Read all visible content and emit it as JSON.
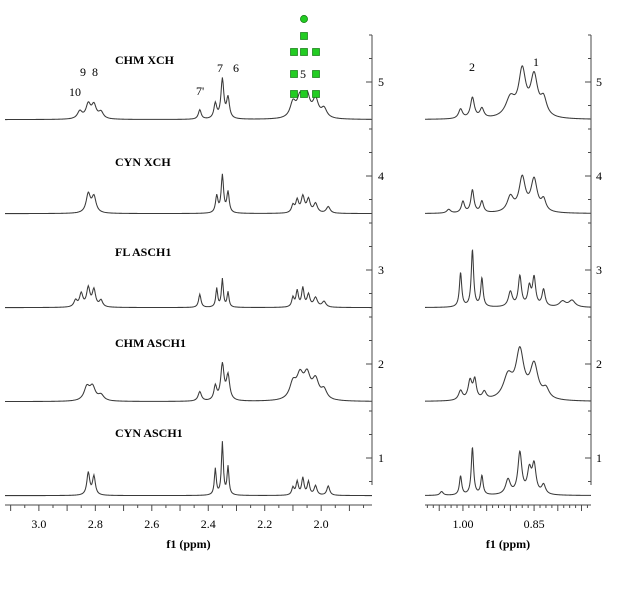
{
  "chart_data": [
    {
      "type": "line",
      "xlabel": "f1 (ppm)",
      "xlim": [
        3.12,
        1.82
      ],
      "x_ticks": [
        "3.0",
        "2.8",
        "2.6",
        "2.4",
        "2.2",
        "2.0"
      ],
      "x_tick_values": [
        3.0,
        2.8,
        2.6,
        2.4,
        2.2,
        2.0
      ],
      "y_ticks": [
        "1",
        "2",
        "3",
        "4",
        "5"
      ],
      "y_tick_values": [
        1,
        2,
        3,
        4,
        5
      ],
      "ylim": [
        0.5,
        5.5
      ],
      "grid": false,
      "spectra": [
        {
          "name": "CHM XCH",
          "baseline": 4.6,
          "peaks": [
            {
              "x": 2.855,
              "h": 0.08,
              "w": 0.01
            },
            {
              "x": 2.825,
              "h": 0.15,
              "w": 0.01
            },
            {
              "x": 2.805,
              "h": 0.14,
              "w": 0.01
            },
            {
              "x": 2.78,
              "h": 0.07,
              "w": 0.01
            },
            {
              "x": 2.43,
              "h": 0.1,
              "w": 0.006
            },
            {
              "x": 2.375,
              "h": 0.16,
              "w": 0.006
            },
            {
              "x": 2.35,
              "h": 0.42,
              "w": 0.006
            },
            {
              "x": 2.33,
              "h": 0.22,
              "w": 0.006
            },
            {
              "x": 2.1,
              "h": 0.16,
              "w": 0.012
            },
            {
              "x": 2.075,
              "h": 0.21,
              "w": 0.012
            },
            {
              "x": 2.05,
              "h": 0.23,
              "w": 0.012
            },
            {
              "x": 2.02,
              "h": 0.19,
              "w": 0.012
            },
            {
              "x": 1.99,
              "h": 0.1,
              "w": 0.012
            }
          ]
        },
        {
          "name": "CYN XCH",
          "baseline": 3.6,
          "peaks": [
            {
              "x": 2.825,
              "h": 0.2,
              "w": 0.009
            },
            {
              "x": 2.805,
              "h": 0.17,
              "w": 0.009
            },
            {
              "x": 2.37,
              "h": 0.18,
              "w": 0.005
            },
            {
              "x": 2.35,
              "h": 0.4,
              "w": 0.005
            },
            {
              "x": 2.33,
              "h": 0.22,
              "w": 0.005
            },
            {
              "x": 2.1,
              "h": 0.08,
              "w": 0.006
            },
            {
              "x": 2.085,
              "h": 0.13,
              "w": 0.006
            },
            {
              "x": 2.065,
              "h": 0.17,
              "w": 0.007
            },
            {
              "x": 2.045,
              "h": 0.14,
              "w": 0.007
            },
            {
              "x": 2.02,
              "h": 0.1,
              "w": 0.008
            },
            {
              "x": 1.975,
              "h": 0.07,
              "w": 0.008
            }
          ]
        },
        {
          "name": "FL ASCH1",
          "baseline": 2.6,
          "peaks": [
            {
              "x": 2.87,
              "h": 0.07,
              "w": 0.007
            },
            {
              "x": 2.85,
              "h": 0.14,
              "w": 0.007
            },
            {
              "x": 2.825,
              "h": 0.2,
              "w": 0.007
            },
            {
              "x": 2.805,
              "h": 0.18,
              "w": 0.007
            },
            {
              "x": 2.78,
              "h": 0.07,
              "w": 0.007
            },
            {
              "x": 2.43,
              "h": 0.14,
              "w": 0.005
            },
            {
              "x": 2.37,
              "h": 0.2,
              "w": 0.004
            },
            {
              "x": 2.35,
              "h": 0.3,
              "w": 0.004
            },
            {
              "x": 2.33,
              "h": 0.16,
              "w": 0.004
            },
            {
              "x": 2.1,
              "h": 0.1,
              "w": 0.005
            },
            {
              "x": 2.085,
              "h": 0.17,
              "w": 0.005
            },
            {
              "x": 2.065,
              "h": 0.2,
              "w": 0.005
            },
            {
              "x": 2.045,
              "h": 0.13,
              "w": 0.006
            },
            {
              "x": 2.02,
              "h": 0.1,
              "w": 0.008
            },
            {
              "x": 1.99,
              "h": 0.06,
              "w": 0.008
            }
          ]
        },
        {
          "name": "CHM ASCH1",
          "baseline": 1.6,
          "peaks": [
            {
              "x": 2.83,
              "h": 0.14,
              "w": 0.012
            },
            {
              "x": 2.81,
              "h": 0.14,
              "w": 0.012
            },
            {
              "x": 2.78,
              "h": 0.06,
              "w": 0.012
            },
            {
              "x": 2.43,
              "h": 0.1,
              "w": 0.007
            },
            {
              "x": 2.375,
              "h": 0.15,
              "w": 0.006
            },
            {
              "x": 2.35,
              "h": 0.38,
              "w": 0.007
            },
            {
              "x": 2.33,
              "h": 0.26,
              "w": 0.007
            },
            {
              "x": 2.1,
              "h": 0.17,
              "w": 0.014
            },
            {
              "x": 2.075,
              "h": 0.23,
              "w": 0.014
            },
            {
              "x": 2.05,
              "h": 0.24,
              "w": 0.014
            },
            {
              "x": 2.02,
              "h": 0.2,
              "w": 0.014
            },
            {
              "x": 1.99,
              "h": 0.1,
              "w": 0.012
            }
          ]
        },
        {
          "name": "CYN ASCH1",
          "baseline": 0.6,
          "peaks": [
            {
              "x": 2.825,
              "h": 0.24,
              "w": 0.006
            },
            {
              "x": 2.805,
              "h": 0.2,
              "w": 0.006
            },
            {
              "x": 2.375,
              "h": 0.28,
              "w": 0.004
            },
            {
              "x": 2.35,
              "h": 0.56,
              "w": 0.004
            },
            {
              "x": 2.33,
              "h": 0.3,
              "w": 0.004
            },
            {
              "x": 2.1,
              "h": 0.08,
              "w": 0.005
            },
            {
              "x": 2.085,
              "h": 0.14,
              "w": 0.005
            },
            {
              "x": 2.065,
              "h": 0.18,
              "w": 0.005
            },
            {
              "x": 2.045,
              "h": 0.14,
              "w": 0.005
            },
            {
              "x": 2.02,
              "h": 0.1,
              "w": 0.006
            },
            {
              "x": 1.975,
              "h": 0.1,
              "w": 0.006
            }
          ]
        }
      ]
    },
    {
      "type": "line",
      "xlabel": "f1 (ppm)",
      "xlim": [
        1.08,
        0.73
      ],
      "x_ticks": [
        "1.00",
        "0.85"
      ],
      "x_tick_values": [
        1.0,
        0.85
      ],
      "y_ticks": [
        "1",
        "2",
        "3",
        "4",
        "5"
      ],
      "y_tick_values": [
        1,
        2,
        3,
        4,
        5
      ],
      "ylim": [
        0.5,
        5.5
      ],
      "grid": false,
      "spectra": [
        {
          "name": "CHM XCH",
          "baseline": 4.6,
          "peaks": [
            {
              "x": 1.005,
              "h": 0.1,
              "w": 0.005
            },
            {
              "x": 0.98,
              "h": 0.22,
              "w": 0.005
            },
            {
              "x": 0.96,
              "h": 0.1,
              "w": 0.005
            },
            {
              "x": 0.9,
              "h": 0.2,
              "w": 0.012
            },
            {
              "x": 0.875,
              "h": 0.48,
              "w": 0.009
            },
            {
              "x": 0.85,
              "h": 0.42,
              "w": 0.009
            },
            {
              "x": 0.83,
              "h": 0.18,
              "w": 0.008
            }
          ]
        },
        {
          "name": "CYN XCH",
          "baseline": 3.6,
          "peaks": [
            {
              "x": 1.03,
              "h": 0.04,
              "w": 0.005
            },
            {
              "x": 1.0,
              "h": 0.12,
              "w": 0.004
            },
            {
              "x": 0.98,
              "h": 0.24,
              "w": 0.004
            },
            {
              "x": 0.96,
              "h": 0.12,
              "w": 0.004
            },
            {
              "x": 0.9,
              "h": 0.16,
              "w": 0.008
            },
            {
              "x": 0.875,
              "h": 0.36,
              "w": 0.008
            },
            {
              "x": 0.85,
              "h": 0.34,
              "w": 0.008
            },
            {
              "x": 0.83,
              "h": 0.12,
              "w": 0.006
            }
          ]
        },
        {
          "name": "FL ASCH1",
          "baseline": 2.6,
          "peaks": [
            {
              "x": 1.005,
              "h": 0.36,
              "w": 0.003
            },
            {
              "x": 0.98,
              "h": 0.6,
              "w": 0.003
            },
            {
              "x": 0.96,
              "h": 0.3,
              "w": 0.003
            },
            {
              "x": 0.9,
              "h": 0.16,
              "w": 0.005
            },
            {
              "x": 0.88,
              "h": 0.32,
              "w": 0.004
            },
            {
              "x": 0.86,
              "h": 0.2,
              "w": 0.004
            },
            {
              "x": 0.85,
              "h": 0.3,
              "w": 0.004
            },
            {
              "x": 0.83,
              "h": 0.18,
              "w": 0.004
            },
            {
              "x": 0.79,
              "h": 0.06,
              "w": 0.008
            },
            {
              "x": 0.77,
              "h": 0.07,
              "w": 0.008
            }
          ]
        },
        {
          "name": "CHM ASCH1",
          "baseline": 1.6,
          "peaks": [
            {
              "x": 1.005,
              "h": 0.1,
              "w": 0.005
            },
            {
              "x": 0.985,
              "h": 0.2,
              "w": 0.005
            },
            {
              "x": 0.975,
              "h": 0.2,
              "w": 0.004
            },
            {
              "x": 0.955,
              "h": 0.08,
              "w": 0.005
            },
            {
              "x": 0.905,
              "h": 0.24,
              "w": 0.012
            },
            {
              "x": 0.88,
              "h": 0.5,
              "w": 0.01
            },
            {
              "x": 0.85,
              "h": 0.36,
              "w": 0.01
            },
            {
              "x": 0.825,
              "h": 0.1,
              "w": 0.008
            }
          ]
        },
        {
          "name": "CYN ASCH1",
          "baseline": 0.6,
          "peaks": [
            {
              "x": 1.045,
              "h": 0.04,
              "w": 0.004
            },
            {
              "x": 1.005,
              "h": 0.2,
              "w": 0.003
            },
            {
              "x": 0.98,
              "h": 0.5,
              "w": 0.003
            },
            {
              "x": 0.96,
              "h": 0.2,
              "w": 0.003
            },
            {
              "x": 0.905,
              "h": 0.16,
              "w": 0.006
            },
            {
              "x": 0.88,
              "h": 0.44,
              "w": 0.005
            },
            {
              "x": 0.86,
              "h": 0.24,
              "w": 0.005
            },
            {
              "x": 0.85,
              "h": 0.3,
              "w": 0.005
            },
            {
              "x": 0.83,
              "h": 0.1,
              "w": 0.005
            }
          ]
        }
      ]
    }
  ],
  "sample_labels": [
    "CHM XCH",
    "CYN XCH",
    "FL ASCH1",
    "CHM ASCH1",
    "CYN ASCH1"
  ],
  "peak_labels": {
    "left": [
      "10",
      "9",
      "8",
      "7'",
      "7",
      "6",
      "5"
    ],
    "right": [
      "2",
      "1"
    ]
  },
  "colors": {
    "trace": "#3a3a3a",
    "marker": "#22cc22"
  }
}
